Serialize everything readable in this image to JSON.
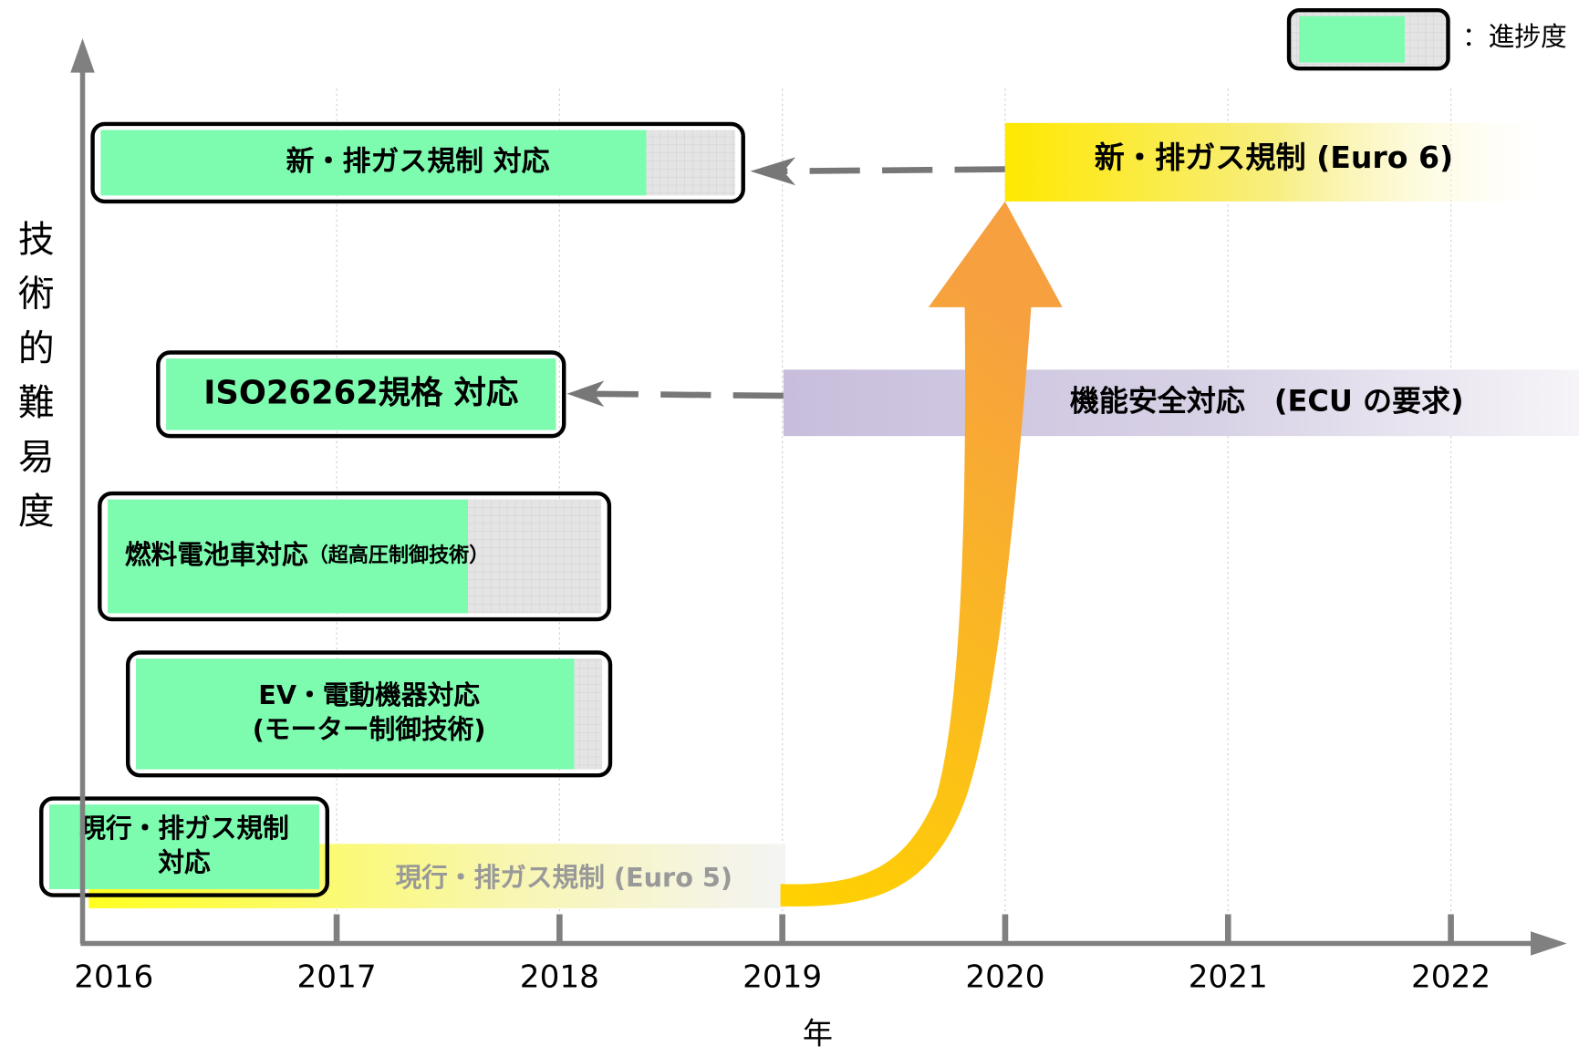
{
  "y_axis_label": "技術的難易度",
  "x_axis_label": "年",
  "years": [
    "2016",
    "2017",
    "2018",
    "2019",
    "2020",
    "2021",
    "2022"
  ],
  "legend": "：進捗度",
  "tasks": [
    {
      "lines": [
        "新・排ガス規制 対応"
      ],
      "progress": 86
    },
    {
      "lines": [
        "ISO26262規格 対応"
      ],
      "progress": 100
    },
    {
      "lines": [
        "燃料電池車対応",
        "（超高圧制御技術）"
      ],
      "progress": 73
    },
    {
      "lines": [
        "EV・電動機器対応",
        "(モーター制御技術)"
      ],
      "progress": 94
    },
    {
      "lines": [
        "現行・排ガス規制",
        "対応"
      ],
      "progress": 100
    }
  ],
  "bands": [
    "新・排ガス規制 (Euro 6)",
    "機能安全対応　(ECU の要求)",
    "現行・排ガス規制 (Euro 5)"
  ]
}
